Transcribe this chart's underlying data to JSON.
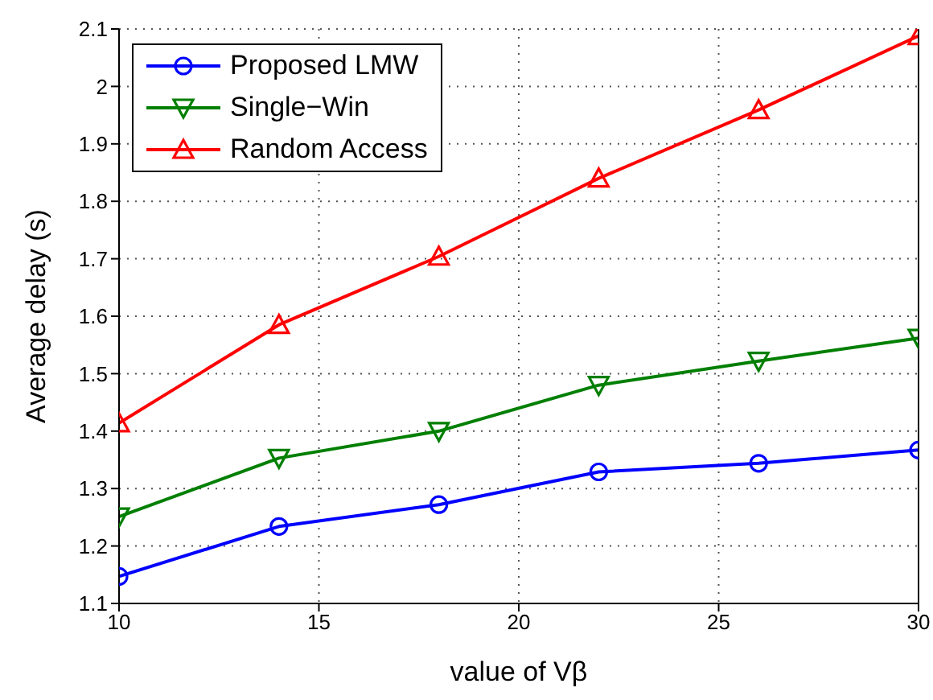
{
  "chart_data": {
    "type": "line",
    "xlabel": "value of Vβ",
    "ylabel": "Average delay (s)",
    "x": [
      10,
      14,
      18,
      22,
      26,
      30
    ],
    "series": [
      {
        "name": "Proposed LMW",
        "color": "#0000ff",
        "marker": "circle",
        "values": [
          1.147,
          1.234,
          1.272,
          1.329,
          1.344,
          1.367
        ]
      },
      {
        "name": "Single−Win",
        "color": "#007f00",
        "marker": "triangle-down",
        "values": [
          1.251,
          1.353,
          1.4,
          1.48,
          1.522,
          1.562
        ]
      },
      {
        "name": "Random Access",
        "color": "#ff0000",
        "marker": "triangle",
        "values": [
          1.414,
          1.585,
          1.704,
          1.84,
          1.959,
          2.088
        ]
      }
    ],
    "xlim": [
      10,
      30
    ],
    "xticks": [
      10,
      15,
      20,
      25,
      30
    ],
    "ylim": [
      1.1,
      2.1
    ],
    "yticks": [
      1.1,
      1.2,
      1.3,
      1.4,
      1.5,
      1.6,
      1.7,
      1.8,
      1.9,
      2,
      2.1
    ],
    "grid": true,
    "legend": "top left",
    "line_style": "solid"
  }
}
